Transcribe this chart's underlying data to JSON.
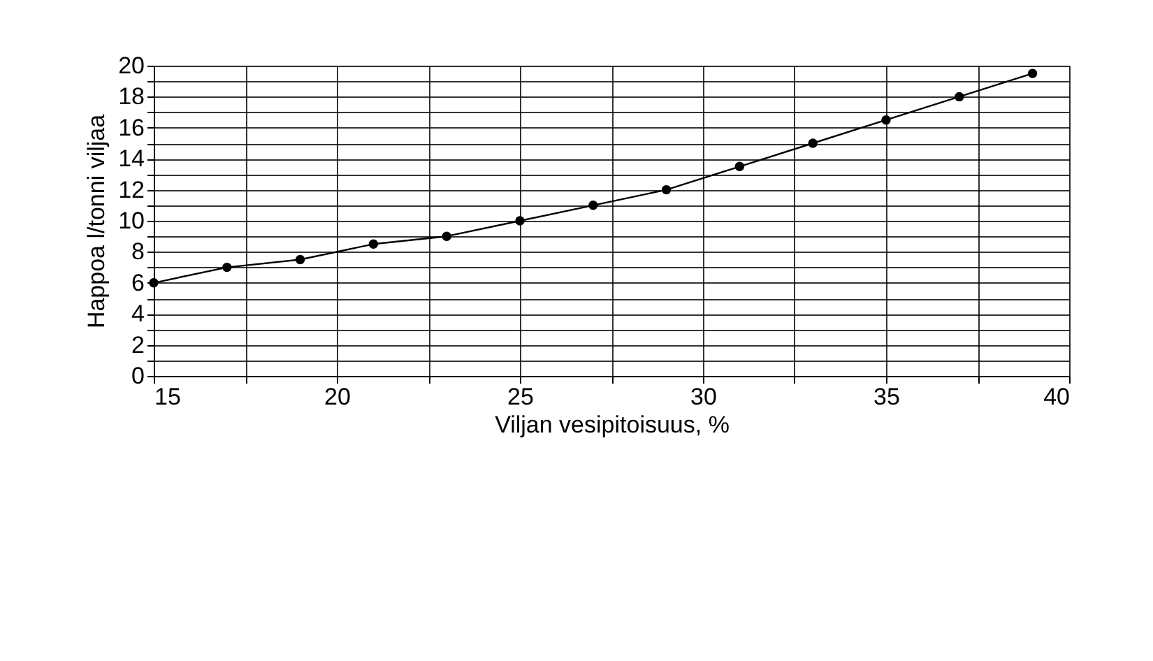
{
  "chart_data": {
    "type": "line",
    "xlabel": "Viljan vesipitoisuus, %",
    "ylabel": "Happoa l/tonni viljaa",
    "x": [
      15,
      17,
      19,
      21,
      23,
      25,
      27,
      29,
      31,
      33,
      35,
      37,
      39
    ],
    "series": [
      {
        "color": "#000000",
        "values": [
          6,
          7,
          7.5,
          8.5,
          9,
          10,
          11,
          12,
          13.5,
          15,
          16.5,
          18,
          19.5
        ]
      }
    ],
    "xlim": [
      15,
      40
    ],
    "ylim": [
      0,
      20
    ],
    "xticks": [
      15,
      {
        "value": 17.5,
        "label": null
      },
      20,
      {
        "value": 22.5,
        "label": null
      },
      25,
      {
        "value": 27.5,
        "label": null
      },
      30,
      {
        "value": 32.5,
        "label": null
      },
      35,
      {
        "value": 37.5,
        "label": null
      },
      40
    ],
    "yticks": [
      0,
      {
        "value": 1,
        "label": null
      },
      2,
      {
        "value": 3,
        "label": null
      },
      4,
      {
        "value": 5,
        "label": null
      },
      6,
      {
        "value": 7,
        "label": null
      },
      8,
      {
        "value": 9,
        "label": null
      },
      10,
      {
        "value": 11,
        "label": null
      },
      12,
      {
        "value": 13,
        "label": null
      },
      14,
      {
        "value": 15,
        "label": null
      },
      16,
      {
        "value": 17,
        "label": null
      },
      18,
      {
        "value": 19,
        "label": null
      },
      20
    ],
    "grid": true,
    "marker": "circle",
    "line_style": "solid"
  }
}
